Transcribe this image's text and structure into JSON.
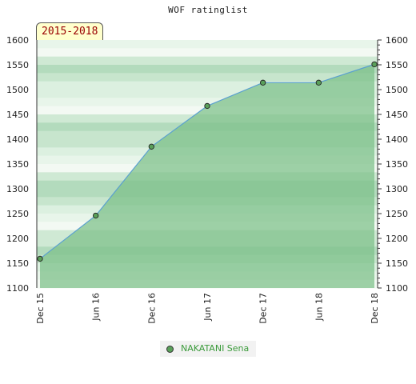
{
  "chart_data": {
    "type": "area",
    "title": "WOF ratinglist",
    "period": "2015-2018",
    "x": [
      "Dec 15",
      "Jun 16",
      "Dec 16",
      "Jun 17",
      "Dec 17",
      "Jun 18",
      "Dec 18"
    ],
    "series": [
      {
        "name": "NAKATANI Sena",
        "values": [
          1159,
          1246,
          1385,
          1467,
          1514,
          1514,
          1551
        ]
      }
    ],
    "ylim": [
      1100,
      1600
    ],
    "yticks": [
      1100,
      1150,
      1200,
      1250,
      1300,
      1350,
      1400,
      1450,
      1500,
      1550,
      1600
    ],
    "grid": true,
    "legend": "bottom-center"
  },
  "colors": {
    "fill": "#7bbf88",
    "line": "#5aa0d0",
    "marker": "#5aa05a",
    "legend_text": "#3a9a3a",
    "badge_bg": "#ffffcc",
    "badge_text": "#990000"
  }
}
